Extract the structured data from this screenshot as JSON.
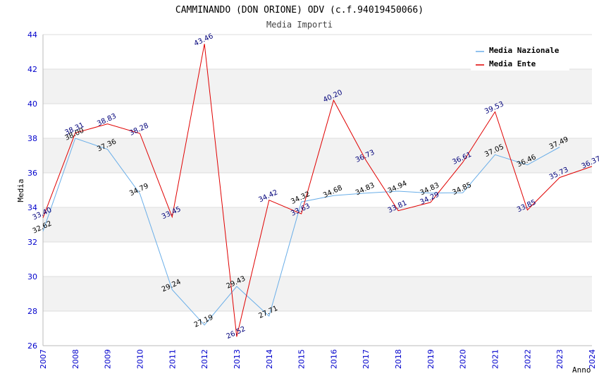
{
  "chart_data": {
    "type": "line",
    "title": "CAMMINANDO (DON ORIONE) ODV (c.f.94019450066)",
    "subtitle": "Media Importi",
    "ylabel": "Media",
    "xlabel": "Anno",
    "ylim": [
      26,
      44
    ],
    "yticks": [
      26,
      28,
      30,
      32,
      34,
      36,
      38,
      40,
      42,
      44
    ],
    "x": [
      "2007",
      "2008",
      "2009",
      "2010",
      "2011",
      "2012",
      "2013",
      "2014",
      "2015",
      "2016",
      "2017",
      "2018",
      "2019",
      "2020",
      "2021",
      "2022",
      "2023",
      "2024"
    ],
    "grid": true,
    "legend_position": "top-right",
    "series": [
      {
        "name": "Media Nazionale",
        "color": "#6aaee8",
        "values": [
          32.62,
          38.0,
          37.36,
          34.79,
          29.24,
          27.19,
          29.43,
          27.71,
          34.32,
          34.68,
          34.83,
          34.94,
          34.83,
          34.85,
          37.05,
          36.46,
          37.49,
          null
        ],
        "labels": [
          "32.62",
          "38.00",
          "37.36",
          "34.79",
          "29.24",
          "27.19",
          "29.43",
          "27.71",
          "34.32",
          "34.68",
          "34.83",
          "34.94",
          "34.83",
          "34.85",
          "37.05",
          "36.46",
          "37.49",
          ""
        ]
      },
      {
        "name": "Media Ente",
        "color": "#e00000",
        "values": [
          33.4,
          38.31,
          38.83,
          38.28,
          33.45,
          43.46,
          26.52,
          34.42,
          33.63,
          40.2,
          36.73,
          33.81,
          34.29,
          36.61,
          39.53,
          33.85,
          35.73,
          36.37
        ],
        "labels": [
          "33.40",
          "38.31",
          "38.83",
          "38.28",
          "33.45",
          "43.46",
          "26.52",
          "34.42",
          "33.63",
          "40.20",
          "36.73",
          "33.81",
          "34.29",
          "36.61",
          "39.53",
          "33.85",
          "35.73",
          "36.37"
        ]
      }
    ]
  }
}
